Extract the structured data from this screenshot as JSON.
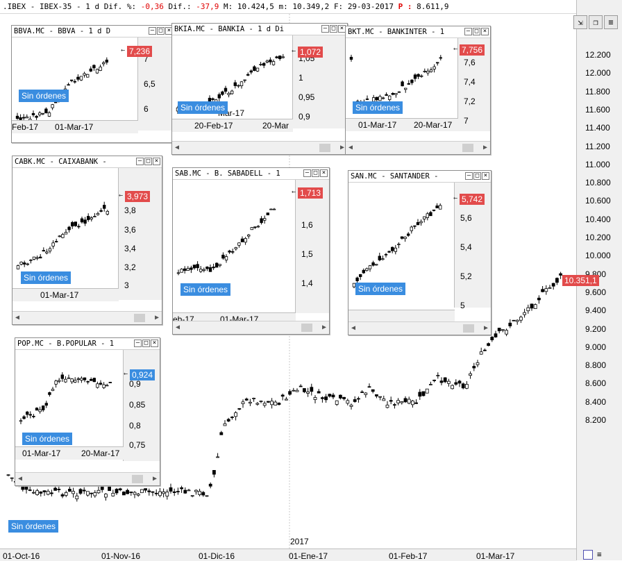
{
  "header": {
    "symbol": ".IBEX",
    "sep1": "-",
    "name": "IBEX-35",
    "sep2": "-",
    "period": "1 d",
    "dif_pct_label": "Dif. %:",
    "dif_pct": "-0,36",
    "dif_label": "Dif.:",
    "dif": "-37,9",
    "max_label": "M:",
    "max": "10.424,5",
    "min_label": "m:",
    "min": "10.349,2",
    "date_label": "F:",
    "date": "29-03-2017",
    "p_label": "P :",
    "p_value": "8.611,9"
  },
  "main_chart": {
    "last_price": "10.351,1",
    "orders": "Sin órdenes",
    "year_marker": "2017",
    "price_axis": [
      "12.200",
      "12.000",
      "11.800",
      "11.600",
      "11.400",
      "11.200",
      "11.000",
      "10.800",
      "10.600",
      "10.400",
      "10.200",
      "10.000",
      "9.800",
      "9.600",
      "9.400",
      "9.200",
      "9.000",
      "8.800",
      "8.600",
      "8.400",
      "8.200"
    ],
    "date_axis": [
      "01-Oct-16",
      "01-Nov-16",
      "01-Dic-16",
      "01-Ene-17",
      "01-Feb-17",
      "01-Mar-17"
    ]
  },
  "windows": {
    "bbva": {
      "title": "BBVA.MC - BBVA - 1 d D",
      "price": "7,236",
      "orders": "Sin órdenes",
      "axis": [
        "7",
        "6,5",
        "6"
      ],
      "dates": [
        "Feb-17",
        "01-Mar-17"
      ]
    },
    "bkia": {
      "title": "BKIA.MC - BANKIA - 1 d Di",
      "price": "1,072",
      "orders": "Sin órdenes",
      "axis": [
        "1,05",
        "1",
        "0,95",
        "0,9"
      ],
      "dates": [
        "Mar-17",
        "20-Feb-17",
        "20-Mar"
      ]
    },
    "bkt": {
      "title": "BKT.MC - BANKINTER - 1",
      "price": "7,756",
      "orders": "Sin órdenes",
      "axis": [
        "7,6",
        "7,4",
        "7,2",
        "7"
      ],
      "dates": [
        "Mar-17",
        "01-Mar-17",
        "20-Mar-17"
      ]
    },
    "cabk": {
      "title": "CABK.MC - CAIXABANK -",
      "price": "3,973",
      "orders": "Sin órdenes",
      "axis": [
        "3,8",
        "3,6",
        "3,4",
        "3,2",
        "3"
      ],
      "dates": [
        "Mar-17",
        "01-Mar-17"
      ]
    },
    "sab": {
      "title": "SAB.MC - B. SABADELL - 1",
      "price": "1,713",
      "orders": "Sin órdenes",
      "axis": [
        "1,6",
        "1,5",
        "1,4"
      ],
      "dates": [
        "eb-17",
        "01-Mar-17"
      ]
    },
    "san": {
      "title": "SAN.MC - SANTANDER -",
      "price": "5,742",
      "orders": "Sin órdenes",
      "axis": [
        "5,6",
        "5,4",
        "5,2",
        "5"
      ],
      "dates": []
    },
    "pop": {
      "title": "POP.MC - B.POPULAR - 1",
      "price": "0,924",
      "orders": "Sin órdenes",
      "axis": [
        "0,9",
        "0,85",
        "0,8",
        "0,75"
      ],
      "dates": [
        "Mar-17",
        "01-Mar-17",
        "20-Mar-17"
      ]
    }
  },
  "colors": {
    "last_price_bg": "#e24b4b",
    "orders_bg": "#3a8de0",
    "axis_bg": "#f0f0f0"
  }
}
